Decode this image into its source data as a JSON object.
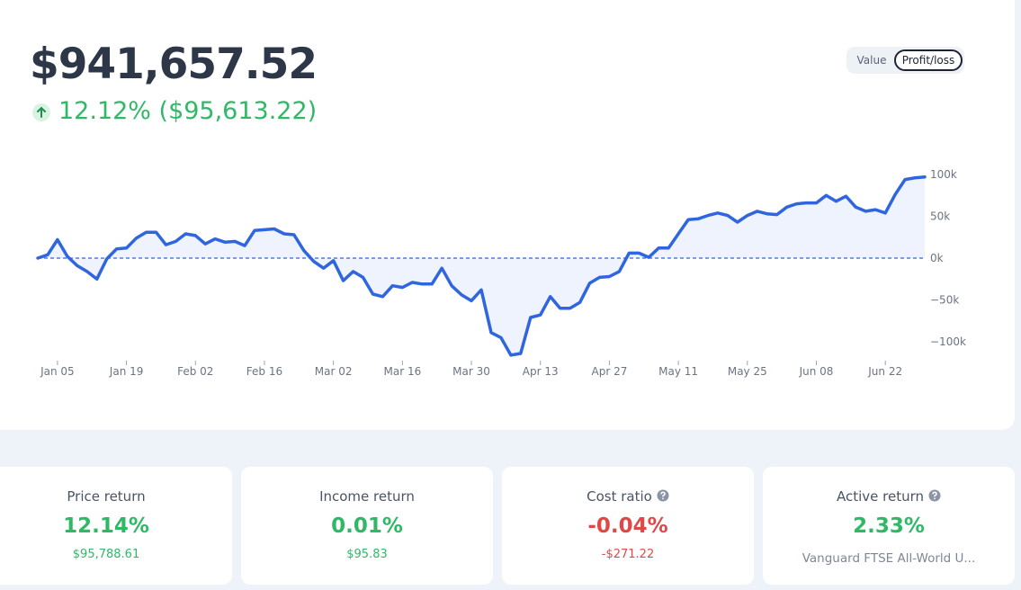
{
  "header": {
    "value": "$941,657.52",
    "change": "12.12% ($95,613.22)"
  },
  "toggle": {
    "options": [
      "Value",
      "Profit/loss"
    ],
    "selected": 1
  },
  "chart_data": {
    "type": "line",
    "color": "#2f66e0",
    "area_color": "#eef3fd",
    "x": [
      "Jan 01",
      "Jan 03",
      "Jan 05",
      "Jan 07",
      "Jan 09",
      "Jan 11",
      "Jan 13",
      "Jan 15",
      "Jan 17",
      "Jan 19",
      "Jan 21",
      "Jan 23",
      "Jan 25",
      "Jan 27",
      "Jan 29",
      "Jan 31",
      "Feb 02",
      "Feb 04",
      "Feb 06",
      "Feb 08",
      "Feb 10",
      "Feb 12",
      "Feb 14",
      "Feb 16",
      "Feb 18",
      "Feb 20",
      "Feb 22",
      "Feb 24",
      "Feb 26",
      "Feb 28",
      "Mar 02",
      "Mar 04",
      "Mar 06",
      "Mar 08",
      "Mar 10",
      "Mar 12",
      "Mar 14",
      "Mar 16",
      "Mar 18",
      "Mar 20",
      "Mar 22",
      "Mar 24",
      "Mar 26",
      "Mar 28",
      "Mar 30",
      "Apr 01",
      "Apr 03",
      "Apr 05",
      "Apr 07",
      "Apr 09",
      "Apr 11",
      "Apr 13",
      "Apr 15",
      "Apr 17",
      "Apr 19",
      "Apr 21",
      "Apr 23",
      "Apr 25",
      "Apr 27",
      "Apr 29",
      "May 01",
      "May 03",
      "May 05",
      "May 07",
      "May 09",
      "May 11",
      "May 13",
      "May 15",
      "May 17",
      "May 19",
      "May 21",
      "May 23",
      "May 25",
      "May 27",
      "May 29",
      "May 31",
      "Jun 02",
      "Jun 04",
      "Jun 06",
      "Jun 08",
      "Jun 10",
      "Jun 12",
      "Jun 14",
      "Jun 16",
      "Jun 18",
      "Jun 20",
      "Jun 22",
      "Jun 24",
      "Jun 26",
      "Jun 28",
      "Jun 30"
    ],
    "values": [
      0,
      4000,
      22000,
      2000,
      -9000,
      -16000,
      -25000,
      -1000,
      11000,
      12000,
      24000,
      31000,
      31000,
      16000,
      20000,
      29000,
      27000,
      17000,
      23000,
      19000,
      20000,
      15000,
      33000,
      34000,
      35000,
      29000,
      28000,
      9000,
      -4000,
      -12000,
      -3000,
      -27000,
      -16000,
      -23000,
      -43000,
      -46000,
      -33000,
      -35000,
      -29000,
      -31000,
      -31000,
      -12000,
      -33000,
      -44000,
      -51000,
      -38000,
      -89000,
      -95000,
      -116000,
      -114000,
      -71000,
      -68000,
      -46000,
      -60000,
      -60000,
      -53000,
      -30000,
      -23000,
      -22000,
      -16000,
      6000,
      6000,
      1000,
      12000,
      12000,
      29000,
      46000,
      47000,
      51000,
      54000,
      51000,
      43000,
      51000,
      56000,
      53000,
      52000,
      61000,
      65000,
      66000,
      66000,
      75000,
      68000,
      74000,
      61000,
      56000,
      58000,
      54000,
      76000,
      94000,
      96000,
      97000
    ],
    "xticks": [
      "Jan 05",
      "Jan 19",
      "Feb 02",
      "Feb 16",
      "Mar 02",
      "Mar 16",
      "Mar 30",
      "Apr 13",
      "Apr 27",
      "May 11",
      "May 25",
      "Jun 08",
      "Jun 22"
    ],
    "ylim": [
      -120000,
      105000
    ],
    "yticks": [
      {
        "value": 100000,
        "label": "100k"
      },
      {
        "value": 50000,
        "label": "50k"
      },
      {
        "value": 0,
        "label": "0k"
      },
      {
        "value": -50000,
        "label": "−50k"
      },
      {
        "value": -100000,
        "label": "−100k"
      }
    ]
  },
  "cards": [
    {
      "title": "Price return",
      "value": "12.14%",
      "detail": "$95,788.61",
      "color": "#2fb866",
      "help": false
    },
    {
      "title": "Income return",
      "value": "0.01%",
      "detail": "$95.83",
      "color": "#2fb866",
      "help": false
    },
    {
      "title": "Cost ratio",
      "value": "-0.04%",
      "detail": "-$271.22",
      "color": "#e04848",
      "help": true
    },
    {
      "title": "Active return",
      "value": "2.33%",
      "detail": "Vanguard FTSE All-World U...",
      "color": "#2fb866",
      "help": true,
      "detail_muted": true
    }
  ]
}
